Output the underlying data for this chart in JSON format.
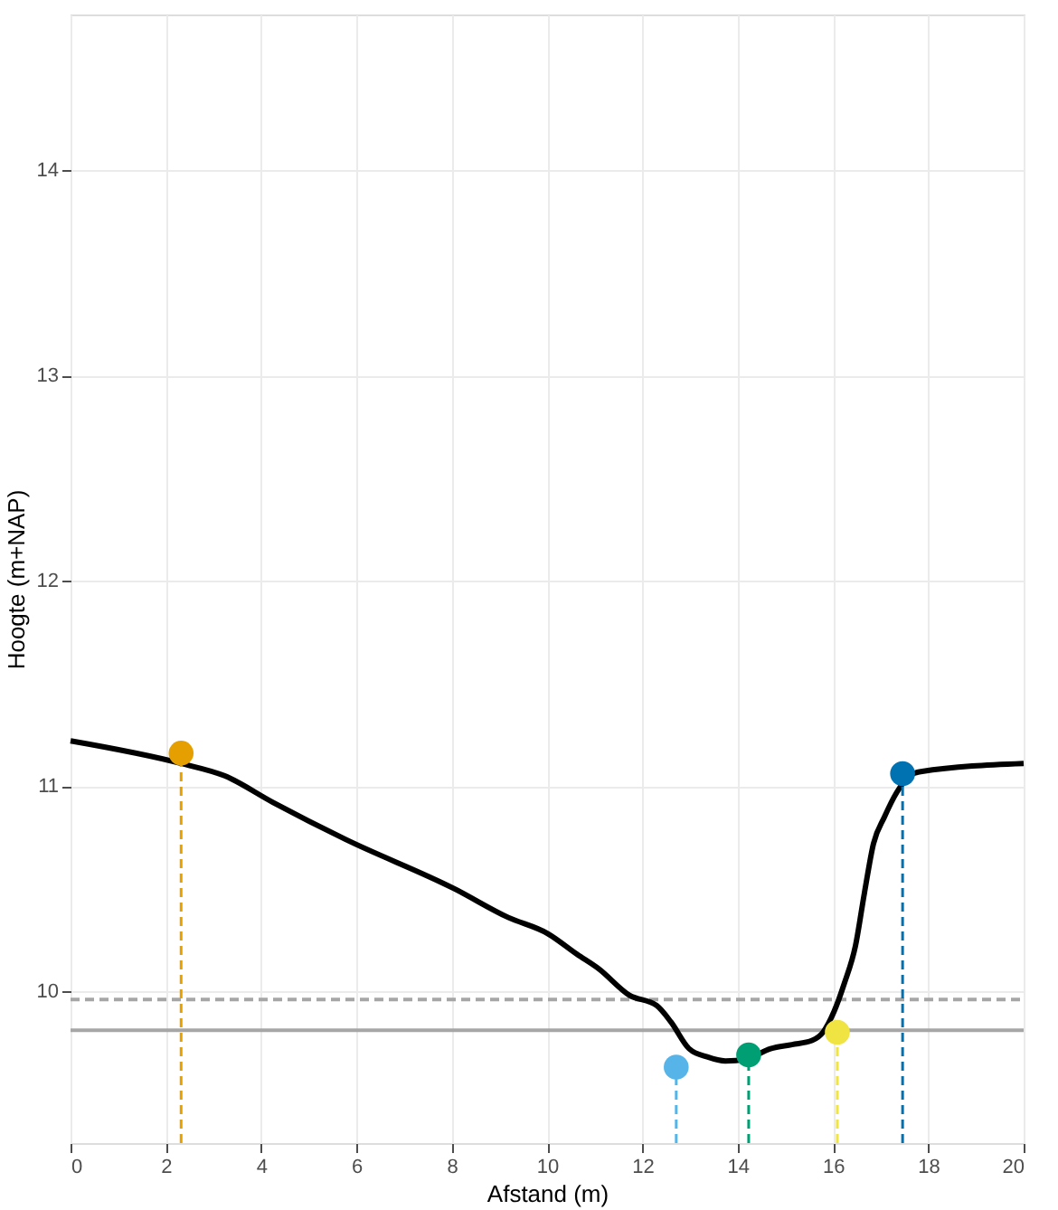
{
  "chart_data": {
    "type": "line",
    "xlabel": "Afstand (m)",
    "ylabel": "Hoogte (m+NAP)",
    "xlim": [
      0,
      20
    ],
    "xticks": [
      0,
      2,
      4,
      6,
      8,
      10,
      12,
      14,
      16,
      18,
      20
    ],
    "ylim": [
      9.26,
      14.76
    ],
    "yticks": [
      10,
      11,
      12,
      13,
      14
    ],
    "grid": true,
    "series": [
      {
        "color": "#000000",
        "x": [
          0,
          2.32,
          3.23,
          4.25,
          5.77,
          8.05,
          9.18,
          10.02,
          10.63,
          11.08,
          11.73,
          12.3,
          12.6,
          12.98,
          13.36,
          13.74,
          14.19,
          14.69,
          15.14,
          15.56,
          15.79,
          16.02,
          16.24,
          16.47,
          16.66,
          16.85,
          17.08,
          17.34,
          17.61,
          17.84,
          20
        ],
        "values": [
          11.22,
          11.11,
          11.05,
          10.92,
          10.74,
          10.5,
          10.36,
          10.28,
          10.18,
          10.11,
          9.98,
          9.93,
          9.85,
          9.72,
          9.68,
          9.66,
          9.67,
          9.72,
          9.74,
          9.76,
          9.8,
          9.9,
          10.04,
          10.22,
          10.48,
          10.72,
          10.85,
          10.97,
          11.05,
          11.07,
          11.11
        ]
      },
      {
        "type": "scatter",
        "color": "#e69f00",
        "x": [
          2.32
        ],
        "values": [
          11.16
        ],
        "errors": [
          [
            9.26,
            11.16
          ]
        ]
      },
      {
        "type": "scatter",
        "color": "#56b4e9",
        "x": [
          12.71
        ],
        "values": [
          9.63
        ],
        "errors": [
          [
            9.26,
            9.63
          ]
        ]
      },
      {
        "type": "scatter",
        "color": "#009e73",
        "x": [
          14.23
        ],
        "values": [
          9.69
        ],
        "errors": [
          [
            9.26,
            9.69
          ]
        ]
      },
      {
        "type": "scatter",
        "color": "#f0e442",
        "x": [
          16.09
        ],
        "values": [
          9.8
        ],
        "errors": [
          [
            9.26,
            9.8
          ]
        ]
      },
      {
        "type": "scatter",
        "color": "#0072b2",
        "x": [
          17.46
        ],
        "values": [
          11.06
        ],
        "errors": [
          [
            9.26,
            11.06
          ]
        ]
      }
    ],
    "ref_lines": [
      {
        "axis": "y",
        "value": 9.96,
        "color": "#a6a6a6",
        "line_style": "dashed"
      },
      {
        "axis": "y",
        "value": 9.81,
        "color": "#a6a6a6",
        "line_style": "solid"
      }
    ]
  }
}
